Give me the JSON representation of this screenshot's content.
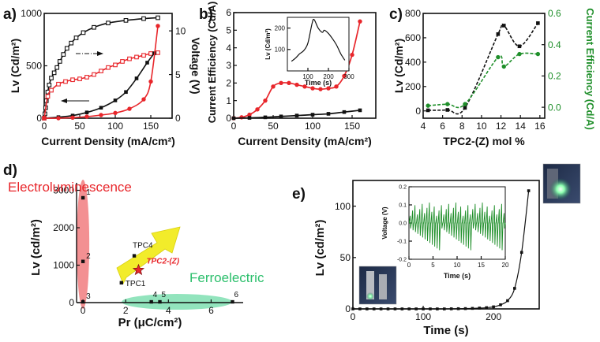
{
  "figure": {
    "panel_labels": [
      "a)",
      "b)",
      "c)",
      "d)",
      "e)"
    ]
  },
  "colors": {
    "black": "#111111",
    "red": "#e8262b",
    "green": "#1f8f2a",
    "pink_ellipse": "#f17c7f",
    "mint_ellipse": "#7fdfb1",
    "yellow_arrow": "#f2ec2a"
  },
  "chart_data": [
    {
      "panel": "a)",
      "type": "line",
      "xlabel": "Current Density (mA/cm²)",
      "ylabel": "Lv (Cd/m²)",
      "ylabel_right": "Voltage (V)",
      "xlim": [
        0,
        180
      ],
      "ylim": [
        0,
        1000
      ],
      "ylim_right": [
        0,
        12
      ],
      "xticks": [
        0,
        50,
        100,
        150
      ],
      "yticks": [
        0,
        500,
        1000
      ],
      "yticks_right": [
        0,
        5,
        10
      ],
      "series": [
        {
          "name": "Voltage (black open)",
          "axis": "right",
          "color": "black",
          "marker": "open-square",
          "x": [
            1,
            2,
            3,
            5,
            7,
            10,
            14,
            18,
            22,
            27,
            32,
            38,
            45,
            55,
            70,
            90,
            115,
            140,
            160
          ],
          "y": [
            0.5,
            1.2,
            2.0,
            3.0,
            3.8,
            4.6,
            5.2,
            5.8,
            6.5,
            7.3,
            8.0,
            8.6,
            9.2,
            9.8,
            10.4,
            10.9,
            11.2,
            11.4,
            11.5
          ]
        },
        {
          "name": "Voltage (red open)",
          "axis": "right",
          "color": "red",
          "marker": "open-square",
          "x": [
            0,
            5,
            10,
            20,
            30,
            40,
            50,
            60,
            70,
            80,
            90,
            100,
            110,
            120,
            130,
            140,
            150,
            160
          ],
          "y": [
            0,
            2.5,
            3.2,
            3.9,
            4.2,
            4.4,
            4.5,
            4.7,
            5.0,
            5.4,
            5.8,
            6.1,
            6.5,
            6.8,
            7.0,
            7.2,
            7.4,
            7.5
          ]
        },
        {
          "name": "Lv (black solid)",
          "axis": "left",
          "color": "black",
          "marker": "filled-square",
          "x": [
            0,
            20,
            40,
            60,
            80,
            100,
            115,
            130,
            145,
            155
          ],
          "y": [
            0,
            10,
            25,
            55,
            100,
            170,
            250,
            380,
            530,
            620
          ]
        },
        {
          "name": "Lv (red solid)",
          "axis": "left",
          "color": "red",
          "marker": "filled-circle",
          "x": [
            0,
            20,
            40,
            60,
            80,
            100,
            120,
            140,
            150,
            160
          ],
          "y": [
            0,
            0,
            5,
            15,
            30,
            50,
            90,
            180,
            350,
            880
          ]
        }
      ],
      "annotations": [
        "dash-dot arrow pointing right",
        "arrow pointing left"
      ]
    },
    {
      "panel": "b)",
      "type": "line",
      "xlabel": "Current Density (mA/cm²)",
      "ylabel": "Current Efficiency (Cd/A)",
      "xlim": [
        0,
        180
      ],
      "ylim": [
        0,
        6
      ],
      "xticks": [
        0,
        50,
        100,
        150
      ],
      "yticks": [
        0,
        1,
        2,
        3,
        4,
        5,
        6
      ],
      "series": [
        {
          "name": "red",
          "color": "red",
          "marker": "filled-circle",
          "x": [
            0,
            10,
            20,
            30,
            40,
            50,
            60,
            70,
            80,
            90,
            100,
            110,
            120,
            130,
            140,
            150,
            160
          ],
          "y": [
            0,
            0.05,
            0.2,
            0.5,
            1.0,
            1.8,
            2.0,
            2.0,
            1.9,
            1.8,
            1.7,
            1.65,
            1.7,
            1.8,
            2.4,
            3.6,
            5.5
          ]
        },
        {
          "name": "black",
          "color": "black",
          "marker": "filled-square",
          "x": [
            0,
            20,
            40,
            60,
            80,
            100,
            120,
            140,
            160
          ],
          "y": [
            0,
            0.02,
            0.05,
            0.1,
            0.15,
            0.2,
            0.25,
            0.35,
            0.45
          ]
        }
      ],
      "inset": {
        "xlabel": "Time (s)",
        "ylabel": "Lv (Cd/m²)",
        "xlim": [
          0,
          300
        ],
        "ylim": [
          0,
          250
        ],
        "xticks": [
          100,
          200,
          300
        ],
        "yticks": [
          100,
          200
        ],
        "x": [
          20,
          40,
          60,
          80,
          100,
          120,
          130,
          150,
          170,
          180,
          200,
          220,
          240,
          260,
          280
        ],
        "y": [
          45,
          60,
          80,
          95,
          130,
          220,
          240,
          200,
          180,
          190,
          175,
          150,
          120,
          80,
          50
        ]
      }
    },
    {
      "panel": "c)",
      "type": "line",
      "xlabel": "TPC2-(Z) mol %",
      "ylabel": "Lv (Cd/m²)",
      "ylabel_right": "Current Efficiency (Cd/A)",
      "xlim": [
        4,
        16.5
      ],
      "ylim": [
        -60,
        800
      ],
      "ylim_right": [
        -0.07,
        0.6
      ],
      "xticks": [
        4,
        6,
        8,
        10,
        12,
        14,
        16
      ],
      "yticks": [
        0,
        200,
        400,
        600,
        800
      ],
      "yticks_right": [
        0.0,
        0.2,
        0.4,
        0.6
      ],
      "series": [
        {
          "name": "Lv",
          "axis": "left",
          "color": "black",
          "marker": "filled-square",
          "x": [
            4.5,
            6.5,
            8.3,
            11.7,
            12.3,
            13.9,
            15.8
          ],
          "y": [
            5,
            8,
            25,
            630,
            700,
            530,
            720
          ]
        },
        {
          "name": "Current Efficiency",
          "axis": "right",
          "color": "green",
          "marker": "filled-circle",
          "x": [
            4.5,
            6.5,
            8.3,
            11.7,
            12.3,
            13.9,
            15.8
          ],
          "y": [
            0.01,
            0.02,
            0.02,
            0.32,
            0.26,
            0.34,
            0.34
          ]
        }
      ]
    },
    {
      "panel": "d)",
      "type": "scatter",
      "xlabel": "Pr (μC/cm²)",
      "ylabel": "Lv (cd/m²)",
      "xlim": [
        -0.3,
        7.5
      ],
      "ylim": [
        0,
        3200
      ],
      "xticks": [
        0,
        2,
        4,
        6
      ],
      "yticks": [
        0,
        1000,
        2000,
        3000
      ],
      "region_labels": [
        "Electroluminescence",
        "Ferroelectric"
      ],
      "points": [
        {
          "label": "1",
          "x": 0.0,
          "y": 2800
        },
        {
          "label": "2",
          "x": 0.0,
          "y": 1100
        },
        {
          "label": "3",
          "x": 0.0,
          "y": 20
        },
        {
          "label": "4",
          "x": 3.2,
          "y": 20
        },
        {
          "label": "5",
          "x": 3.6,
          "y": 20
        },
        {
          "label": "6",
          "x": 7.0,
          "y": 20
        },
        {
          "label": "TPC4",
          "x": 2.4,
          "y": 1250
        },
        {
          "label": "TPC1",
          "x": 1.8,
          "y": 530
        },
        {
          "label": "TPC2-(Z)",
          "x": 2.6,
          "y": 870,
          "marker": "star"
        }
      ]
    },
    {
      "panel": "e)",
      "type": "line",
      "xlabel": "Time (s)",
      "ylabel": "Lv (cd/m²)",
      "xlim": [
        0,
        265
      ],
      "ylim": [
        0,
        125
      ],
      "xticks": [
        0,
        100,
        200
      ],
      "yticks": [
        0,
        50,
        100
      ],
      "series": [
        {
          "name": "Lv",
          "color": "black",
          "marker": "filled-square",
          "x": [
            0,
            10,
            20,
            30,
            40,
            50,
            60,
            70,
            80,
            90,
            100,
            110,
            120,
            130,
            140,
            150,
            160,
            170,
            180,
            190,
            200,
            210,
            220,
            230,
            240,
            250
          ],
          "y": [
            0,
            0,
            0,
            0,
            0,
            0,
            0,
            0,
            0,
            0,
            0,
            0,
            0,
            0,
            0.1,
            0.2,
            0.3,
            0.5,
            0.8,
            1.2,
            2,
            4,
            8,
            20,
            55,
            115
          ]
        }
      ],
      "inset": {
        "xlabel": "Time (s)",
        "ylabel": "Voltage (V)",
        "xlim": [
          0,
          20
        ],
        "ylim": [
          -0.2,
          0.2
        ],
        "xticks": [
          0,
          5,
          10,
          15,
          20
        ],
        "yticks": [
          -0.2,
          -0.1,
          0.0,
          0.1,
          0.2
        ],
        "color": "green",
        "spike_count": 40
      }
    }
  ]
}
